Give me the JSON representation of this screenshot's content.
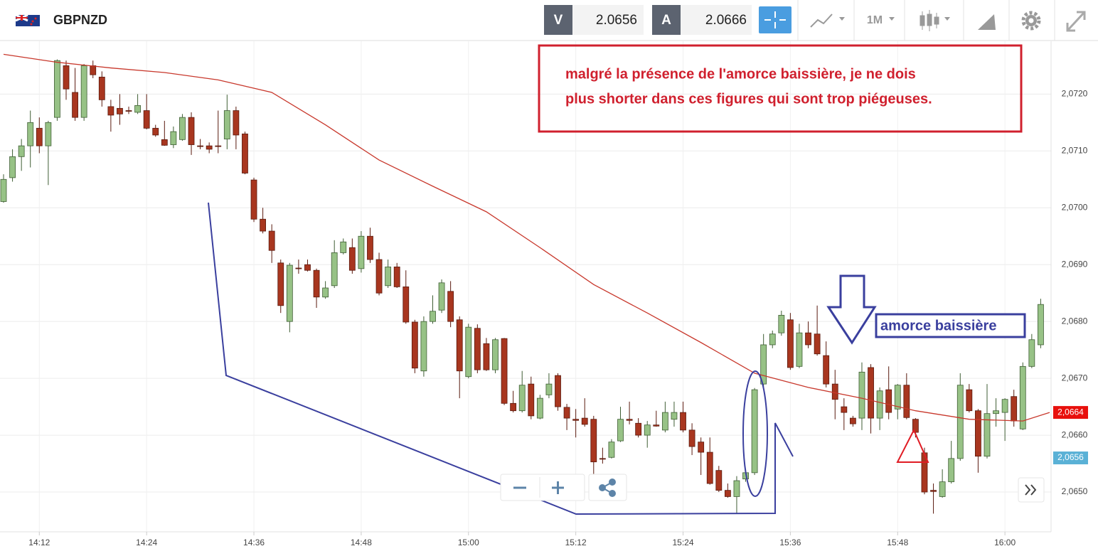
{
  "header": {
    "symbol": "GBPNZD",
    "bid_label": "V",
    "bid": 2.0656,
    "ask_label": "A",
    "ask": 2.0666,
    "timeframe": "1M"
  },
  "chart_data": {
    "type": "candlestick",
    "x": [
      "14:08",
      "14:09",
      "14:10",
      "14:11",
      "14:12",
      "14:13",
      "14:14",
      "14:15",
      "14:16",
      "14:17",
      "14:18",
      "14:19",
      "14:20",
      "14:21",
      "14:22",
      "14:23",
      "14:24",
      "14:25",
      "14:26",
      "14:27",
      "14:28",
      "14:29",
      "14:30",
      "14:31",
      "14:32",
      "14:33",
      "14:34",
      "14:35",
      "14:36",
      "14:37",
      "14:38",
      "14:39",
      "14:40",
      "14:41",
      "14:42",
      "14:43",
      "14:44",
      "14:45",
      "14:46",
      "14:47",
      "14:48",
      "14:49",
      "14:50",
      "14:51",
      "14:52",
      "14:53",
      "14:54",
      "14:55",
      "14:56",
      "14:57",
      "14:58",
      "14:59",
      "15:00",
      "15:01",
      "15:02",
      "15:03",
      "15:04",
      "15:05",
      "15:06",
      "15:07",
      "15:08",
      "15:09",
      "15:10",
      "15:11",
      "15:12",
      "15:13",
      "15:14",
      "15:15",
      "15:16",
      "15:17",
      "15:18",
      "15:19",
      "15:20",
      "15:21",
      "15:22",
      "15:23",
      "15:24",
      "15:25",
      "15:26",
      "15:27",
      "15:28",
      "15:29",
      "15:30",
      "15:31",
      "15:32",
      "15:33",
      "15:34",
      "15:35",
      "15:36",
      "15:37",
      "15:38",
      "15:39",
      "15:40",
      "15:41",
      "15:42",
      "15:43",
      "15:44",
      "15:45",
      "15:46",
      "15:47",
      "15:48",
      "15:49",
      "15:50",
      "15:51",
      "15:52",
      "15:53",
      "15:54",
      "15:55",
      "15:56",
      "15:57",
      "15:58",
      "15:59",
      "16:00",
      "16:01",
      "16:02",
      "16:03",
      "16:04"
    ],
    "open": [
      2.07011,
      2.07053,
      2.0709,
      2.07109,
      2.0714,
      2.07109,
      2.07159,
      2.0725,
      2.07203,
      2.07159,
      2.0725,
      2.0723,
      2.07178,
      2.07175,
      2.07171,
      2.07168,
      2.07171,
      2.0714,
      2.0712,
      2.07111,
      2.0712,
      2.07159,
      2.07109,
      2.07109,
      2.07109,
      2.07121,
      2.07171,
      2.0713,
      2.07049,
      2.0698,
      2.06959,
      2.06903,
      2.068,
      2.06894,
      2.069,
      2.0689,
      2.06843,
      2.06863,
      2.06921,
      2.0693,
      2.06893,
      2.0695,
      2.06909,
      2.06863,
      2.06896,
      2.06861,
      2.06799,
      2.06713,
      2.068,
      2.0682,
      2.06853,
      2.06803,
      2.06703,
      2.06788,
      2.06761,
      2.06715,
      2.0677,
      2.06656,
      2.06643,
      2.0669,
      2.0663,
      2.06671,
      2.06705,
      2.06649,
      2.06628,
      2.0663,
      2.06628,
      2.06559,
      2.06561,
      2.0659,
      2.06628,
      2.06621,
      2.066,
      2.06618,
      2.06609,
      2.06628,
      2.0664,
      2.06609,
      2.06588,
      2.0657,
      2.06538,
      2.06503,
      2.06492,
      2.06523,
      2.06534,
      2.0669,
      2.06759,
      2.0678,
      2.06803,
      2.06721,
      2.0678,
      2.06778,
      2.0674,
      2.0669,
      2.0665,
      2.0663,
      2.0663,
      2.06719,
      2.0663,
      2.0668,
      2.06646,
      2.06688,
      2.06628,
      2.06569,
      2.06503,
      2.06492,
      2.06518,
      2.06559,
      2.0668,
      2.06643,
      2.06563,
      2.06638,
      2.0664,
      2.06668,
      2.06611,
      2.06721,
      2.06759
    ],
    "high": [
      2.07059,
      2.07103,
      2.07121,
      2.07171,
      2.07159,
      2.07153,
      2.07261,
      2.07259,
      2.07246,
      2.07253,
      2.07259,
      2.0724,
      2.0719,
      2.072,
      2.07178,
      2.072,
      2.072,
      2.07146,
      2.07153,
      2.07143,
      2.07165,
      2.07168,
      2.07121,
      2.07115,
      2.07171,
      2.07199,
      2.07178,
      2.07134,
      2.07053,
      2.07,
      2.06971,
      2.06909,
      2.06903,
      2.06909,
      2.06909,
      2.06893,
      2.06871,
      2.06943,
      2.06946,
      2.06946,
      2.06959,
      2.06965,
      2.06921,
      2.06909,
      2.06903,
      2.0689,
      2.06803,
      2.06809,
      2.06846,
      2.06874,
      2.06871,
      2.06809,
      2.06796,
      2.06795,
      2.06771,
      2.06771,
      2.06771,
      2.06678,
      2.06713,
      2.06703,
      2.06671,
      2.06709,
      2.06709,
      2.06655,
      2.06646,
      2.06665,
      2.06634,
      2.06578,
      2.06593,
      2.0665,
      2.06659,
      2.0663,
      2.06625,
      2.06643,
      2.06659,
      2.06659,
      2.06659,
      2.06621,
      2.06596,
      2.06596,
      2.06546,
      2.06515,
      2.06528,
      2.0654,
      2.06683,
      2.06778,
      2.06784,
      2.06819,
      2.06815,
      2.06796,
      2.068,
      2.06828,
      2.06765,
      2.06715,
      2.06665,
      2.06634,
      2.06728,
      2.06725,
      2.06684,
      2.06721,
      2.0669,
      2.06709,
      2.0663,
      2.06578,
      2.06515,
      2.0654,
      2.0659,
      2.06709,
      2.0669,
      2.06646,
      2.0669,
      2.06665,
      2.06665,
      2.0668,
      2.06728,
      2.06778,
      2.0684
    ],
    "low": [
      2.07009,
      2.07046,
      2.07065,
      2.07071,
      2.07096,
      2.0704,
      2.07153,
      2.0719,
      2.07153,
      2.07153,
      2.07228,
      2.07178,
      2.07134,
      2.07146,
      2.07165,
      2.07165,
      2.07138,
      2.07125,
      2.07109,
      2.07105,
      2.07118,
      2.07093,
      2.07103,
      2.07096,
      2.07096,
      2.07103,
      2.07103,
      2.07059,
      2.06975,
      2.06955,
      2.06903,
      2.06815,
      2.06781,
      2.06884,
      2.06888,
      2.06824,
      2.0684,
      2.06859,
      2.06918,
      2.06884,
      2.06886,
      2.06903,
      2.06846,
      2.06859,
      2.06859,
      2.06796,
      2.06709,
      2.06703,
      2.06796,
      2.06815,
      2.0679,
      2.06665,
      2.067,
      2.06709,
      2.06713,
      2.06709,
      2.06653,
      2.0664,
      2.0664,
      2.06628,
      2.06628,
      2.06665,
      2.06643,
      2.06609,
      2.06596,
      2.06615,
      2.0653,
      2.0655,
      2.06559,
      2.06588,
      2.06619,
      2.06596,
      2.06578,
      2.06615,
      2.06605,
      2.06615,
      2.06605,
      2.06565,
      2.0653,
      2.06513,
      2.065,
      2.0649,
      2.06462,
      2.06518,
      2.0653,
      2.06684,
      2.06753,
      2.06775,
      2.06715,
      2.06718,
      2.06753,
      2.0674,
      2.06684,
      2.06628,
      2.06609,
      2.06615,
      2.06609,
      2.06603,
      2.06609,
      2.06628,
      2.06628,
      2.06628,
      2.06596,
      2.06496,
      2.06462,
      2.0649,
      2.06515,
      2.06555,
      2.0664,
      2.06534,
      2.06559,
      2.06615,
      2.0659,
      2.06615,
      2.06609,
      2.06718,
      2.06753
    ],
    "close": [
      2.0705,
      2.0709,
      2.07109,
      2.0715,
      2.07109,
      2.0715,
      2.07259,
      2.07209,
      2.07159,
      2.0725,
      2.07234,
      2.0719,
      2.07163,
      2.07165,
      2.0717,
      2.0718,
      2.0714,
      2.07128,
      2.0711,
      2.07134,
      2.07159,
      2.07111,
      2.07108,
      2.07103,
      2.07108,
      2.07171,
      2.07128,
      2.07061,
      2.0698,
      2.06959,
      2.06925,
      2.06828,
      2.06899,
      2.06893,
      2.0689,
      2.06843,
      2.06859,
      2.06921,
      2.0694,
      2.0689,
      2.0695,
      2.06909,
      2.0685,
      2.06896,
      2.06861,
      2.06799,
      2.06718,
      2.068,
      2.06818,
      2.06868,
      2.068,
      2.06713,
      2.0679,
      2.06715,
      2.06715,
      2.06768,
      2.06656,
      2.06643,
      2.06688,
      2.06634,
      2.06665,
      2.0669,
      2.0665,
      2.0663,
      2.06626,
      2.06619,
      2.06553,
      2.06558,
      2.06588,
      2.06628,
      2.06626,
      2.066,
      2.06618,
      2.06616,
      2.0664,
      2.0664,
      2.06609,
      2.0658,
      2.0657,
      2.06515,
      2.06503,
      2.06492,
      2.0652,
      2.06534,
      2.0668,
      2.06759,
      2.06778,
      2.06811,
      2.06719,
      2.0678,
      2.06759,
      2.06743,
      2.0669,
      2.06663,
      2.0664,
      2.0662,
      2.06711,
      2.0663,
      2.06678,
      2.0664,
      2.06688,
      2.06631,
      2.06605,
      2.065,
      2.06501,
      2.06518,
      2.06559,
      2.06688,
      2.06643,
      2.06563,
      2.06638,
      2.06643,
      2.06663,
      2.06625,
      2.06721,
      2.06768,
      2.0683
    ],
    "up_color": "#97c286",
    "down_color": "#a8361f",
    "moving_average": {
      "color": "#c8382c",
      "x": [
        "14:08",
        "14:14",
        "14:20",
        "14:26",
        "14:32",
        "14:38",
        "14:44",
        "14:50",
        "14:56",
        "15:02",
        "15:08",
        "15:14",
        "15:20",
        "15:26",
        "15:32",
        "15:38",
        "15:44",
        "15:50",
        "15:56",
        "16:02",
        "16:05"
      ],
      "values": [
        2.0727,
        2.07256,
        2.07246,
        2.07238,
        2.07225,
        2.07203,
        2.07146,
        2.07084,
        2.07038,
        2.06993,
        2.0693,
        2.06865,
        2.06815,
        2.06763,
        2.06709,
        2.06684,
        2.06665,
        2.06643,
        2.06628,
        2.06625,
        2.0664
      ]
    },
    "xlim": [
      "14:08",
      "16:05"
    ],
    "xticks": [
      "14:12",
      "14:24",
      "14:36",
      "14:48",
      "15:00",
      "15:12",
      "15:24",
      "15:36",
      "15:48",
      "16:00"
    ],
    "ylim": [
      2.0643,
      2.07293
    ],
    "yticks": [
      {
        "value": 2.065,
        "label": "2,0650"
      },
      {
        "value": 2.066,
        "label": "2,0660"
      },
      {
        "value": 2.067,
        "label": "2,0670"
      },
      {
        "value": 2.068,
        "label": "2,0680"
      },
      {
        "value": 2.069,
        "label": "2,0690"
      },
      {
        "value": 2.07,
        "label": "2,0700"
      },
      {
        "value": 2.071,
        "label": "2,0710"
      },
      {
        "value": 2.072,
        "label": "2,0720"
      }
    ],
    "grid": true,
    "price_tags": [
      {
        "value": 2.0664,
        "label": "2,0664",
        "color": "#e8100c"
      },
      {
        "value": 2.0656,
        "label": "2,0656",
        "color": "#5ab1d6"
      }
    ],
    "annotation_lines": [
      "malgré la présence de l'amorce baissière, je ne dois",
      "plus shorter dans ces figures qui sont trop piégeuses."
    ],
    "annotation_label": "amorce baissière"
  }
}
